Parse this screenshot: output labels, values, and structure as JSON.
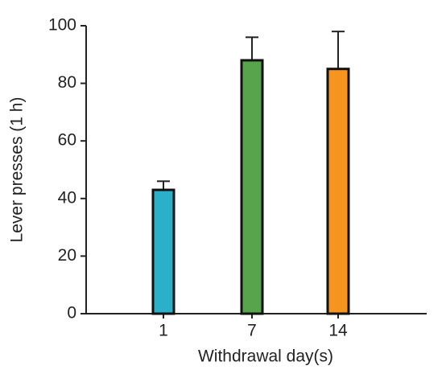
{
  "chart_data": {
    "type": "bar",
    "xlabel": "Withdrawal day(s)",
    "ylabel": "Lever presses (1 h)",
    "categories": [
      "1",
      "7",
      "14"
    ],
    "values": [
      43,
      88,
      85
    ],
    "errors": [
      3,
      8,
      13
    ],
    "colors": [
      "#2bb0c9",
      "#58a44c",
      "#f7941d"
    ],
    "ylim": [
      0,
      100
    ],
    "yticks": [
      0,
      20,
      40,
      60,
      80,
      100
    ],
    "grid": false
  }
}
